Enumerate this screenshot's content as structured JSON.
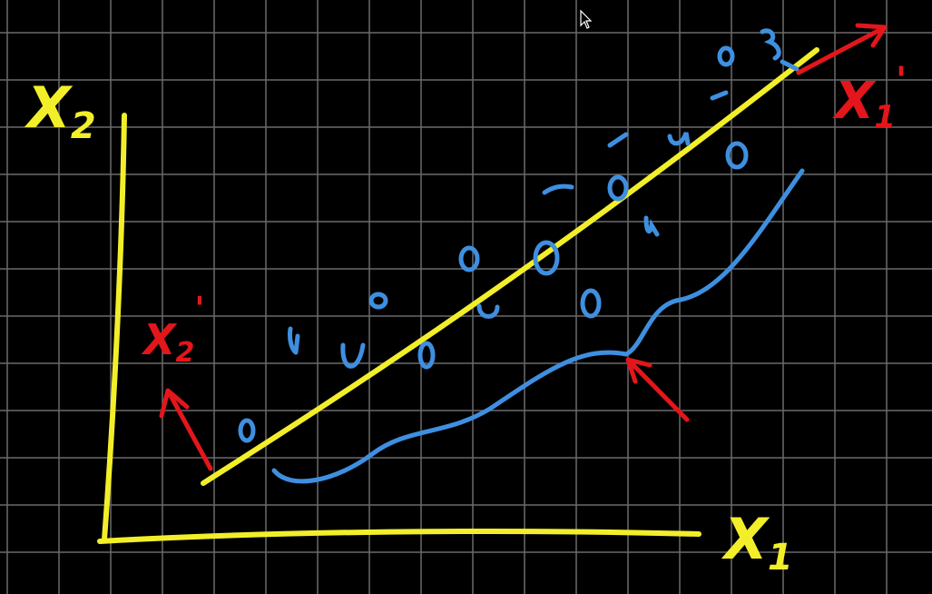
{
  "labels": {
    "x1": "X",
    "x1_sub": "1",
    "x2": "X",
    "x2_sub": "2",
    "x1_prime": "X",
    "x1_prime_sub": "1",
    "x1_prime_mark": "'",
    "x2_prime": "X",
    "x2_prime_sub": "2",
    "x2_prime_mark": "'"
  },
  "colors": {
    "background": "#000000",
    "grid": "#6a6a6a",
    "axes": "#f2ef2a",
    "points": "#3f8fe0",
    "annotation": "#e3161c"
  },
  "icons": {
    "cursor": "mouse-pointer-icon"
  }
}
